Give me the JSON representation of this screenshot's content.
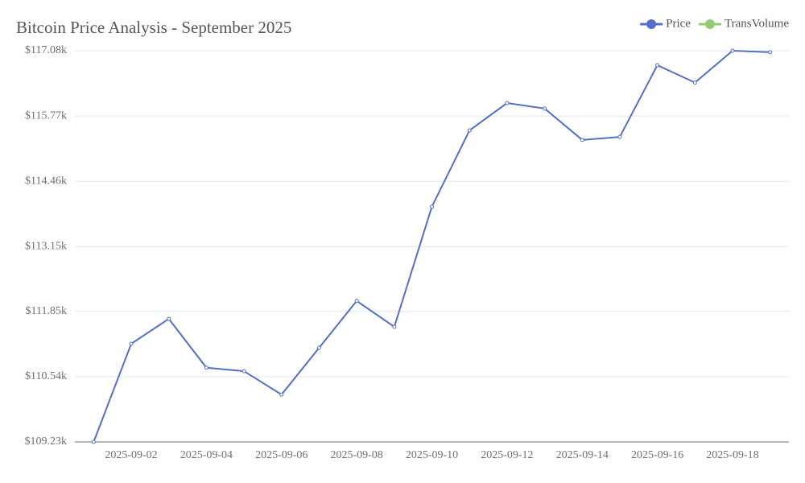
{
  "chart_data": {
    "type": "line",
    "title": "Bitcoin Price Analysis - September 2025",
    "categories": [
      null,
      "2025-09-02",
      null,
      "2025-09-04",
      null,
      "2025-09-06",
      null,
      "2025-09-08",
      null,
      "2025-09-10",
      null,
      "2025-09-12",
      null,
      "2025-09-14",
      null,
      "2025-09-16",
      null,
      "2025-09-18",
      null
    ],
    "series": [
      {
        "name": "Price",
        "color": "#5470c6",
        "values": [
          109.23,
          111.2,
          111.7,
          110.72,
          110.65,
          110.18,
          111.12,
          112.06,
          111.54,
          113.95,
          115.48,
          116.03,
          115.92,
          115.29,
          115.35,
          116.79,
          116.44,
          117.08,
          117.05
        ]
      },
      {
        "name": "TransVolume",
        "color": "#91cc75",
        "values": [
          null,
          null,
          null,
          null,
          null,
          null,
          null,
          null,
          null,
          null,
          null,
          null,
          null,
          null,
          null,
          null,
          null,
          null,
          null
        ]
      }
    ],
    "ylim": [
      109.23,
      117.08
    ],
    "yticks": [
      {
        "value": 109.23,
        "label": "$109.23k"
      },
      {
        "value": 110.54,
        "label": "$110.54k"
      },
      {
        "value": 111.85,
        "label": "$111.85k"
      },
      {
        "value": 113.15,
        "label": "$113.15k"
      },
      {
        "value": 114.46,
        "label": "$114.46k"
      },
      {
        "value": 115.77,
        "label": "$115.77k"
      },
      {
        "value": 117.08,
        "label": "$117.08k"
      }
    ],
    "grid": true,
    "legend": "top-right"
  }
}
